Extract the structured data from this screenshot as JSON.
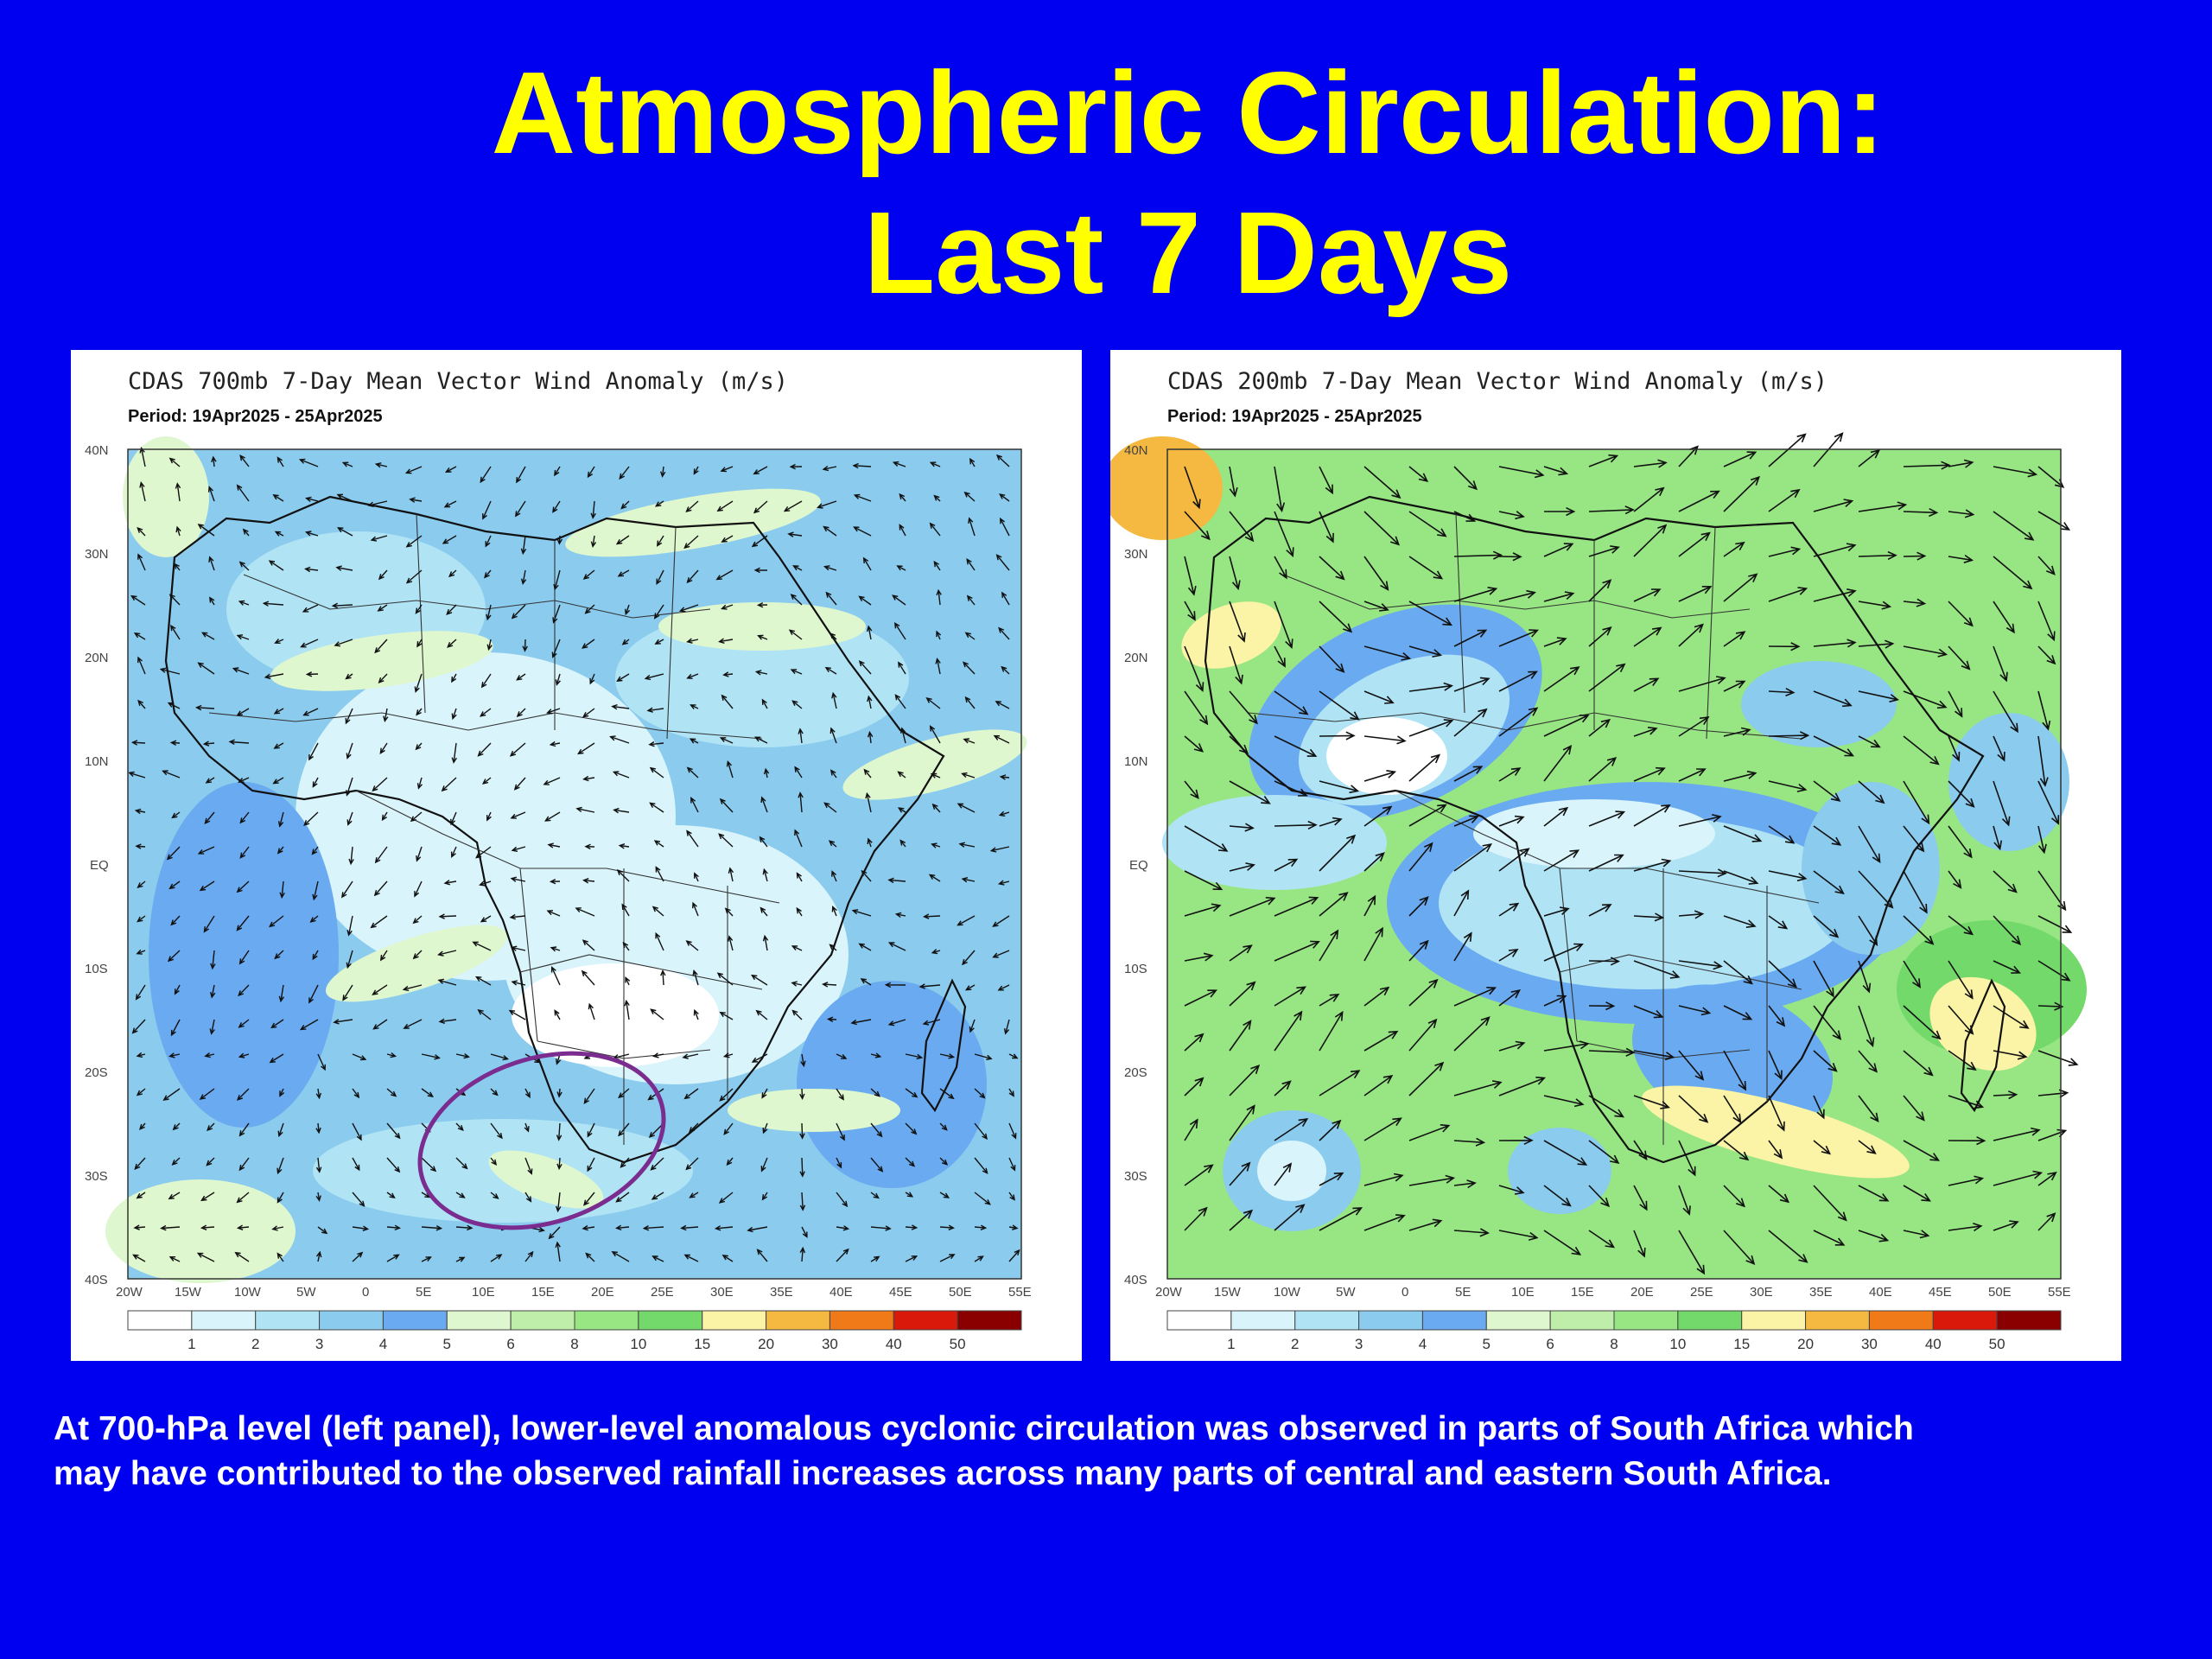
{
  "slide": {
    "title_line1": "Atmospheric Circulation:",
    "title_line2": "Last 7 Days",
    "caption_line1": "At 700-hPa level (left panel), lower-level anomalous cyclonic circulation was observed in parts of South Africa which",
    "caption_line2": "may have contributed to the observed rainfall increases across many parts of central and eastern South Africa."
  },
  "colors": {
    "background": "#0000f0",
    "title": "#ffff00",
    "caption": "#ffffff",
    "annotation_ellipse": "#7b2c8f"
  },
  "color_scale": {
    "thresholds": [
      "1",
      "2",
      "3",
      "4",
      "5",
      "6",
      "8",
      "10",
      "15",
      "20",
      "30",
      "40",
      "50"
    ],
    "colors": [
      "#ffffff",
      "#d9f4fb",
      "#b0e4f5",
      "#8acbee",
      "#6aaaf0",
      "#dff7cf",
      "#bfeeaa",
      "#98e683",
      "#72d96a",
      "#fbf3a6",
      "#f5b840",
      "#f07a17",
      "#d91a0a",
      "#8a0000"
    ]
  },
  "maps": [
    {
      "title": "CDAS 700mb 7-Day Mean Vector Wind Anomaly (m/s)",
      "period": "Period: 19Apr2025 - 25Apr2025",
      "lat_labels": [
        "40N",
        "30N",
        "20N",
        "10N",
        "EQ",
        "10S",
        "20S",
        "30S",
        "40S"
      ],
      "lon_labels": [
        "20W",
        "15W",
        "10W",
        "5W",
        "0",
        "5E",
        "10E",
        "15E",
        "20E",
        "25E",
        "30E",
        "35E",
        "40E",
        "45E",
        "50E",
        "55E"
      ],
      "annotation": "cyclonic circulation over South Africa (circled)"
    },
    {
      "title": "CDAS 200mb 7-Day Mean Vector Wind Anomaly (m/s)",
      "period": "Period: 19Apr2025 - 25Apr2025",
      "lat_labels": [
        "40N",
        "30N",
        "20N",
        "10N",
        "EQ",
        "10S",
        "20S",
        "30S",
        "40S"
      ],
      "lon_labels": [
        "20W",
        "15W",
        "10W",
        "5W",
        "0",
        "5E",
        "10E",
        "15E",
        "20E",
        "25E",
        "30E",
        "35E",
        "40E",
        "45E",
        "50E",
        "55E"
      ]
    }
  ]
}
